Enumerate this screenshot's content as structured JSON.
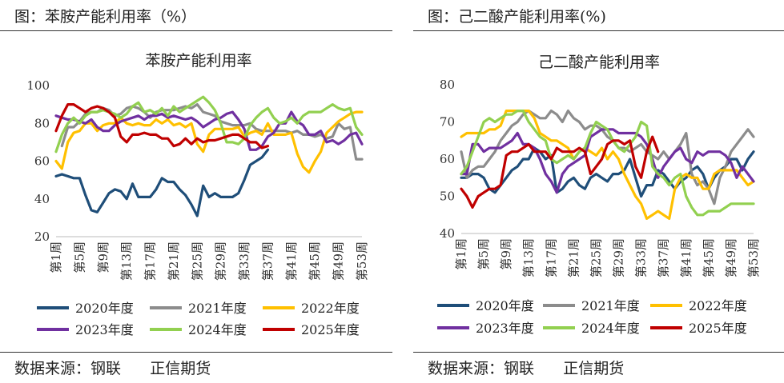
{
  "left": {
    "figure_title": "图：苯胺产能利用率（%）",
    "source": "数据来源：钢联      正信期货"
  },
  "right": {
    "figure_title": "图：己二酸产能利用率(%)",
    "source": "数据来源：钢联      正信期货"
  },
  "colors": {
    "2020年度": "#1f4e79",
    "2021年度": "#8c8c8c",
    "2022年度": "#ffc000",
    "2023年度": "#7030a0",
    "2024年度": "#92d050",
    "2025年度": "#c00000"
  },
  "chart_data": [
    {
      "type": "line",
      "title": "苯胺产能利用率",
      "x": [
        1,
        2,
        3,
        4,
        5,
        6,
        7,
        8,
        9,
        10,
        11,
        12,
        13,
        14,
        15,
        16,
        17,
        18,
        19,
        20,
        21,
        22,
        23,
        24,
        25,
        26,
        27,
        28,
        29,
        30,
        31,
        32,
        33,
        34,
        35,
        36,
        37,
        38,
        39,
        40,
        41,
        42,
        43,
        44,
        45,
        46,
        47,
        48,
        49,
        50,
        51,
        52,
        53
      ],
      "x_tick_labels": [
        "第1周",
        "第5周",
        "第9周",
        "第13周",
        "第17周",
        "第21周",
        "第25周",
        "第29周",
        "第33周",
        "第37周",
        "第41周",
        "第45周",
        "第49周",
        "第53周"
      ],
      "ylim": [
        20,
        100
      ],
      "y_ticks": [
        20,
        40,
        60,
        80,
        100
      ],
      "legend_position": "bottom",
      "series": [
        {
          "name": "2020年度",
          "values": [
            52,
            53,
            52,
            51,
            51,
            42,
            34,
            33,
            38,
            43,
            45,
            44,
            40,
            48,
            41,
            41,
            41,
            45,
            51,
            49,
            49,
            45,
            42,
            37,
            31,
            47,
            41,
            43,
            41,
            41,
            41,
            43,
            50,
            58,
            60,
            62,
            66,
            null,
            null,
            null,
            null,
            null,
            null,
            null,
            null,
            null,
            null,
            null,
            null,
            null,
            null,
            null,
            null
          ]
        },
        {
          "name": "2021年度",
          "values": [
            null,
            68,
            78,
            78,
            81,
            85,
            86,
            86,
            88,
            87,
            84,
            85,
            88,
            89,
            88,
            86,
            83,
            86,
            87,
            87,
            87,
            88,
            89,
            88,
            90,
            86,
            85,
            84,
            81,
            80,
            79,
            79,
            79,
            80,
            77,
            76,
            76,
            76,
            76,
            76,
            75,
            76,
            74,
            74,
            73,
            74,
            72,
            73,
            80,
            77,
            78,
            61,
            61
          ]
        },
        {
          "name": "2022年度",
          "values": [
            60,
            56,
            70,
            75,
            76,
            80,
            80,
            76,
            79,
            80,
            80,
            83,
            80,
            79,
            80,
            79,
            79,
            82,
            80,
            82,
            79,
            80,
            78,
            80,
            69,
            65,
            74,
            77,
            77,
            77,
            77,
            78,
            73,
            75,
            76,
            74,
            80,
            74,
            74,
            74,
            75,
            64,
            57,
            54,
            60,
            65,
            75,
            78,
            81,
            83,
            85,
            86,
            86
          ]
        },
        {
          "name": "2023年度",
          "values": [
            84,
            83,
            82,
            82,
            81,
            80,
            82,
            78,
            76,
            76,
            79,
            81,
            82,
            83,
            84,
            82,
            84,
            84,
            85,
            83,
            84,
            83,
            82,
            83,
            81,
            78,
            80,
            82,
            83,
            85,
            86,
            82,
            77,
            66,
            66,
            68,
            73,
            75,
            80,
            80,
            86,
            81,
            79,
            74,
            74,
            76,
            70,
            71,
            69,
            71,
            74,
            75,
            69
          ]
        },
        {
          "name": "2024年度",
          "values": [
            65,
            74,
            80,
            83,
            80,
            84,
            86,
            86,
            87,
            86,
            85,
            83,
            85,
            89,
            91,
            86,
            87,
            85,
            88,
            84,
            89,
            86,
            88,
            90,
            92,
            94,
            91,
            87,
            80,
            70,
            70,
            69,
            72,
            79,
            83,
            86,
            88,
            83,
            80,
            81,
            83,
            80,
            84,
            86,
            86,
            86,
            88,
            90,
            88,
            87,
            88,
            78,
            74
          ]
        },
        {
          "name": "2025年度",
          "values": [
            76,
            84,
            90,
            90,
            88,
            86,
            88,
            89,
            88,
            86,
            83,
            73,
            70,
            74,
            74,
            75,
            74,
            74,
            72,
            72,
            68,
            69,
            72,
            69,
            72,
            70,
            71,
            71,
            72,
            73,
            74,
            74,
            72,
            70,
            70,
            67,
            68,
            null,
            null,
            null,
            null,
            null,
            null,
            null,
            null,
            null,
            null,
            null,
            null,
            null,
            null,
            null,
            null
          ]
        }
      ]
    },
    {
      "type": "line",
      "title": "己二酸产能利用率",
      "x": [
        1,
        2,
        3,
        4,
        5,
        6,
        7,
        8,
        9,
        10,
        11,
        12,
        13,
        14,
        15,
        16,
        17,
        18,
        19,
        20,
        21,
        22,
        23,
        24,
        25,
        26,
        27,
        28,
        29,
        30,
        31,
        32,
        33,
        34,
        35,
        36,
        37,
        38,
        39,
        40,
        41,
        42,
        43,
        44,
        45,
        46,
        47,
        48,
        49,
        50,
        51,
        52,
        53
      ],
      "x_tick_labels": [
        "第1周",
        "第5周",
        "第9周",
        "第13周",
        "第17周",
        "第21周",
        "第25周",
        "第29周",
        "第33周",
        "第37周",
        "第41周",
        "第45周",
        "第49周",
        "第53周"
      ],
      "ylim": [
        40,
        80
      ],
      "y_ticks": [
        40,
        50,
        60,
        70,
        80
      ],
      "legend_position": "bottom",
      "series": [
        {
          "name": "2020年度",
          "values": [
            55,
            55,
            56,
            56,
            55,
            52,
            51,
            53,
            55,
            57,
            58,
            60,
            60,
            63,
            62,
            60,
            61,
            51,
            52,
            54,
            55,
            53,
            52,
            55,
            56,
            55,
            54,
            56,
            56,
            57,
            60,
            55,
            50,
            53,
            53,
            57,
            56,
            54,
            52,
            54,
            55,
            57,
            58,
            56,
            52,
            55,
            57,
            58,
            60,
            60,
            57,
            60,
            62
          ]
        },
        {
          "name": "2021年度",
          "values": [
            62,
            55,
            57,
            58,
            58,
            60,
            62,
            65,
            67,
            69,
            70,
            72,
            73,
            72,
            71,
            71,
            73,
            72,
            70,
            73,
            71,
            70,
            68,
            69,
            69,
            68,
            66,
            65,
            63,
            63,
            62,
            63,
            64,
            62,
            61,
            60,
            62,
            60,
            62,
            64,
            67,
            56,
            53,
            54,
            52,
            48,
            55,
            58,
            62,
            64,
            66,
            68,
            66
          ]
        },
        {
          "name": "2022年度",
          "values": [
            66,
            67,
            67,
            67,
            67,
            68,
            68,
            69,
            73,
            73,
            73,
            73,
            73,
            71,
            67,
            66,
            65,
            65,
            64,
            63,
            60,
            62,
            63,
            62,
            61,
            63,
            60,
            62,
            60,
            56,
            53,
            50,
            48,
            44,
            45,
            46,
            45,
            44,
            52,
            55,
            56,
            55,
            55,
            52,
            52,
            56,
            57,
            57,
            57,
            57,
            55,
            53,
            54
          ]
        },
        {
          "name": "2023年度",
          "values": [
            56,
            56,
            64,
            64,
            62,
            63,
            63,
            63,
            64,
            65,
            67,
            64,
            64,
            63,
            60,
            56,
            54,
            51,
            56,
            58,
            59,
            60,
            61,
            66,
            67,
            68,
            68,
            68,
            67,
            67,
            67,
            67,
            66,
            64,
            60,
            55,
            58,
            60,
            62,
            63,
            60,
            59,
            62,
            61,
            62,
            62,
            62,
            61,
            59,
            55,
            58,
            56,
            54
          ]
        },
        {
          "name": "2024年度",
          "values": [
            56,
            58,
            62,
            66,
            70,
            71,
            70,
            71,
            72,
            72,
            73,
            73,
            70,
            68,
            66,
            65,
            60,
            59,
            60,
            61,
            60,
            62,
            63,
            67,
            70,
            69,
            68,
            65,
            63,
            62,
            64,
            66,
            70,
            69,
            58,
            56,
            55,
            53,
            55,
            56,
            50,
            47,
            45,
            45,
            46,
            46,
            46,
            47,
            48,
            48,
            48,
            48,
            48
          ]
        },
        {
          "name": "2025年度",
          "values": [
            52,
            50,
            47,
            50,
            51,
            52,
            52,
            53,
            61,
            62,
            62,
            63,
            64,
            62,
            62,
            62,
            60,
            63,
            62,
            62,
            62,
            63,
            62,
            56,
            58,
            60,
            64,
            65,
            65,
            64,
            65,
            58,
            55,
            62,
            66,
            62,
            null,
            null,
            null,
            null,
            null,
            null,
            null,
            null,
            null,
            null,
            null,
            null,
            null,
            null,
            null,
            null,
            null
          ]
        }
      ]
    }
  ]
}
